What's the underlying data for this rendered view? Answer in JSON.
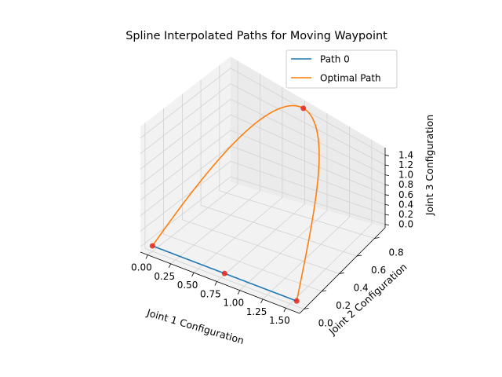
{
  "chart_data": {
    "type": "line",
    "title": "Spline Interpolated Paths for Moving Waypoint",
    "xlabel": "Joint 1 Configuration",
    "ylabel": "Joint 2 Configuration",
    "zlabel": "Joint 3 Configuration",
    "xlim": [
      -0.08,
      1.65
    ],
    "ylim": [
      -0.05,
      0.92
    ],
    "zlim": [
      -0.07,
      1.55
    ],
    "x_ticks": [
      "0.00",
      "0.25",
      "0.50",
      "0.75",
      "1.00",
      "1.25",
      "1.50"
    ],
    "y_ticks": [
      "0.0",
      "0.2",
      "0.4",
      "0.6",
      "0.8"
    ],
    "z_ticks": [
      "0.0",
      "0.2",
      "0.4",
      "0.6",
      "0.8",
      "1.0",
      "1.2",
      "1.4"
    ],
    "x_tick_values": [
      0,
      0.25,
      0.5,
      0.75,
      1.0,
      1.25,
      1.5
    ],
    "y_tick_values": [
      0,
      0.2,
      0.4,
      0.6,
      0.8
    ],
    "z_tick_values": [
      0,
      0.2,
      0.4,
      0.6,
      0.8,
      1.0,
      1.2,
      1.4
    ],
    "legend_position": "top-right",
    "grid": true,
    "series": [
      {
        "name": "Path 0",
        "color": "#1f77b4",
        "points": [
          [
            0.0,
            0.0,
            0.0
          ],
          [
            0.785,
            0.0,
            0.0
          ],
          [
            1.57,
            0.0,
            0.0
          ]
        ]
      },
      {
        "name": "Optimal Path",
        "color": "#ff7f0e",
        "points": [
          [
            0.0,
            0.0,
            0.0
          ],
          [
            0.785,
            0.87,
            1.5
          ],
          [
            1.57,
            0.0,
            0.0
          ]
        ]
      }
    ],
    "waypoints": {
      "color": "#e8261e",
      "points": [
        [
          0.0,
          0.0,
          0.0
        ],
        [
          0.785,
          0.0,
          0.0
        ],
        [
          1.57,
          0.0,
          0.0
        ],
        [
          0.785,
          0.87,
          1.5
        ]
      ]
    }
  }
}
